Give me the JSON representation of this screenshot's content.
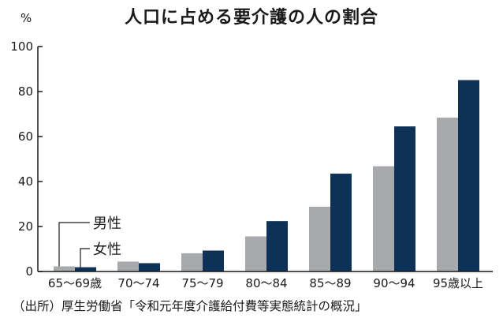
{
  "chart_data": {
    "type": "bar",
    "title": "人口に占める要介護の人の割合",
    "ylabel": "%",
    "xlabel": "",
    "ylim": [
      0,
      100
    ],
    "yticks": [
      0,
      20,
      40,
      60,
      80,
      100
    ],
    "categories": [
      "65〜69歳",
      "70〜74",
      "75〜79",
      "80〜84",
      "85〜89",
      "90〜94",
      "95歳以上"
    ],
    "series": [
      {
        "name": "男性",
        "color": "#a7a9ac",
        "values": [
          2.3,
          4.4,
          8.1,
          15.6,
          28.8,
          46.8,
          68.4
        ]
      },
      {
        "name": "女性",
        "color": "#0e3158",
        "values": [
          1.9,
          3.7,
          9.3,
          22.4,
          43.5,
          64.5,
          85.1
        ]
      }
    ],
    "grid": false,
    "legend": "bottom-left",
    "source": "（出所）厚生労働省「令和元年度介護給付費等実態統計の概況」"
  }
}
